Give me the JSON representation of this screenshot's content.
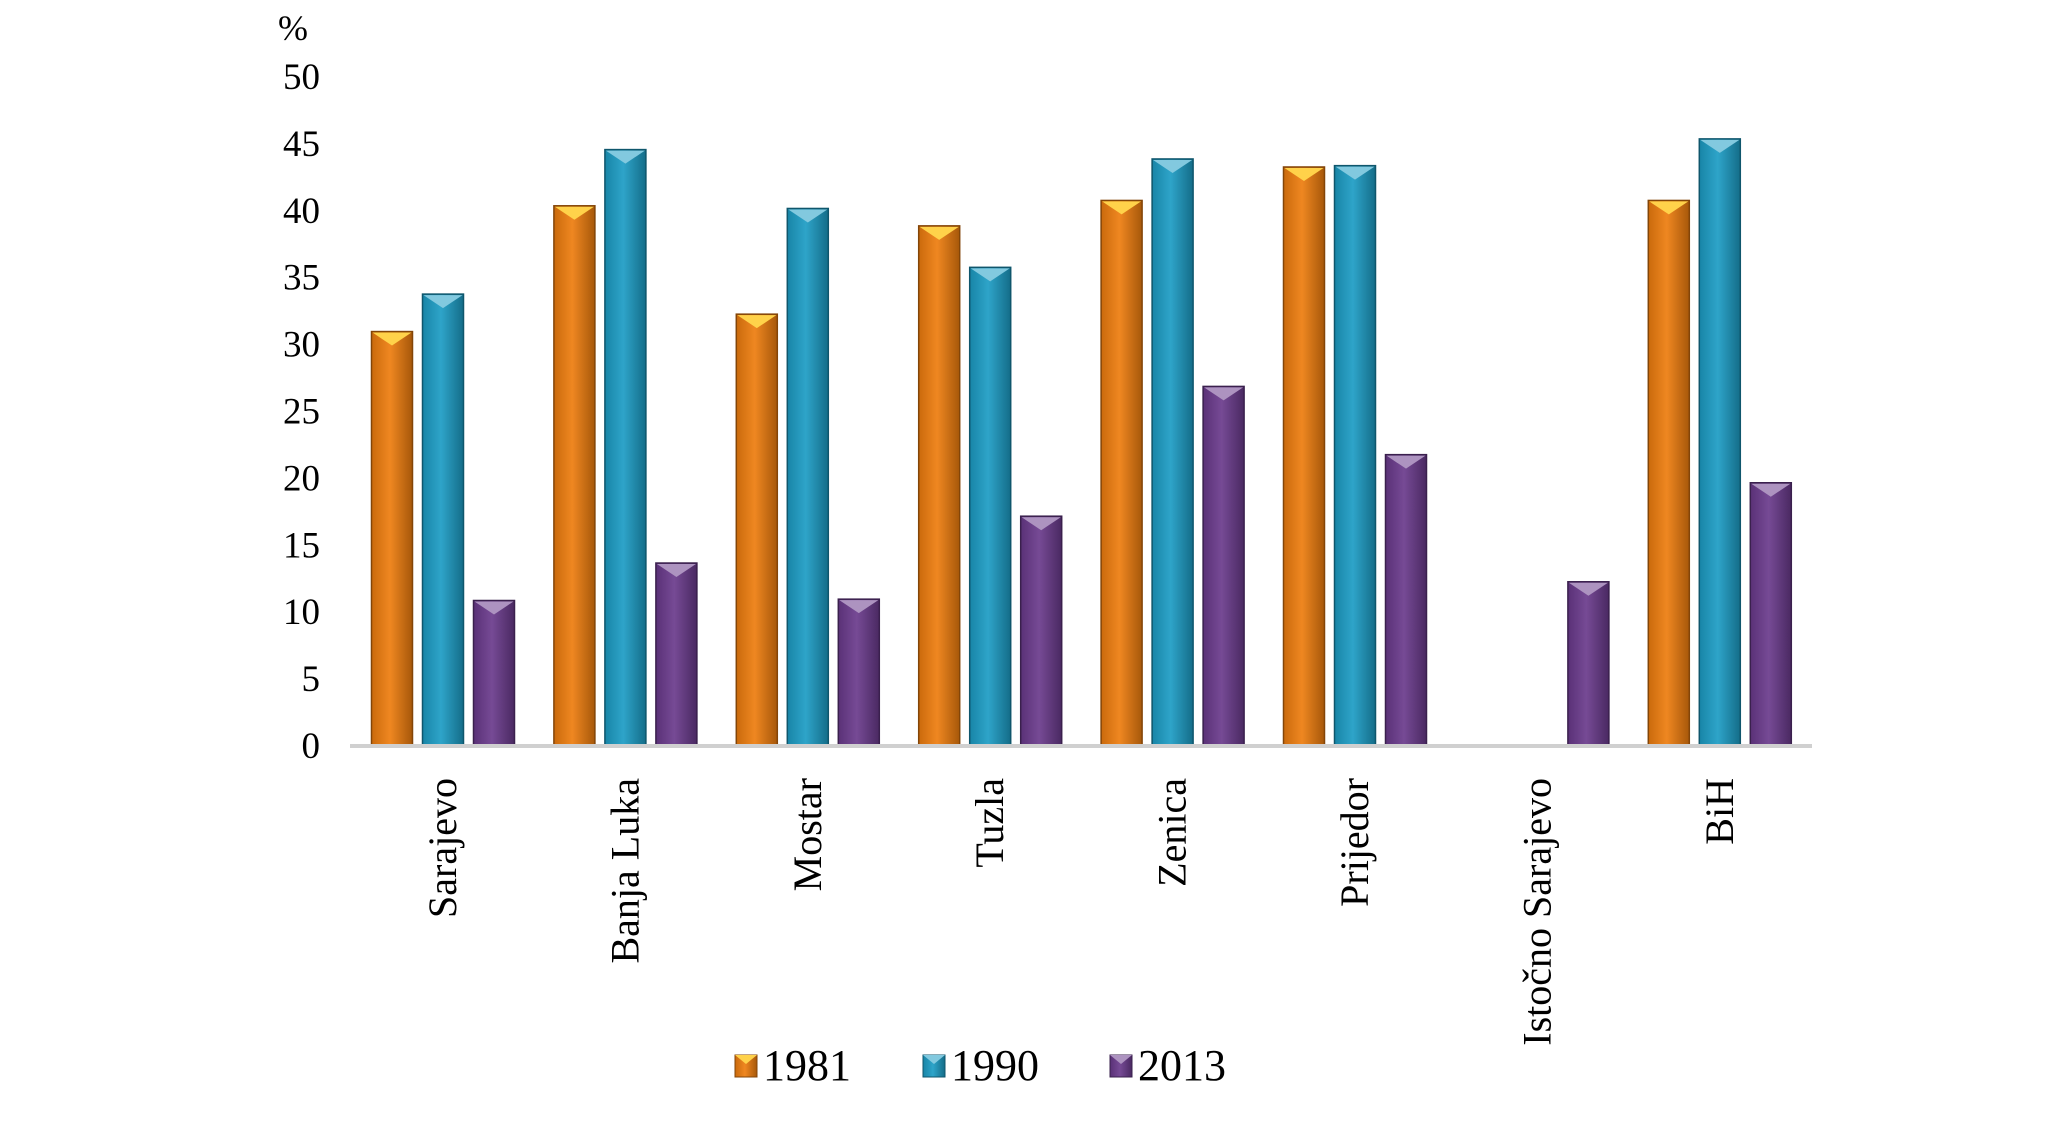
{
  "chart_data": {
    "type": "bar",
    "title": "",
    "ylabel": "%",
    "xlabel": "",
    "ylim": [
      0,
      50
    ],
    "yticks": [
      0,
      5,
      10,
      15,
      20,
      25,
      30,
      35,
      40,
      45,
      50
    ],
    "grid": false,
    "legend_position": "bottom",
    "categories": [
      "Sarajevo",
      "Banja Luka",
      "Mostar",
      "Tuzla",
      "Zenica",
      "Prijedor",
      "Istočno Sarajevo",
      "BiH"
    ],
    "series": [
      {
        "name": "1981",
        "color": "#EE7D0E",
        "values": [
          30.9,
          40.3,
          32.2,
          38.8,
          40.7,
          43.2,
          null,
          40.7
        ]
      },
      {
        "name": "1990",
        "color": "#1C9CC4",
        "values": [
          33.7,
          44.5,
          40.1,
          35.7,
          43.8,
          43.3,
          null,
          45.3
        ]
      },
      {
        "name": "2013",
        "color": "#6A3A8C",
        "values": [
          10.8,
          13.6,
          10.9,
          17.1,
          26.8,
          21.7,
          12.2,
          19.6
        ]
      }
    ]
  }
}
